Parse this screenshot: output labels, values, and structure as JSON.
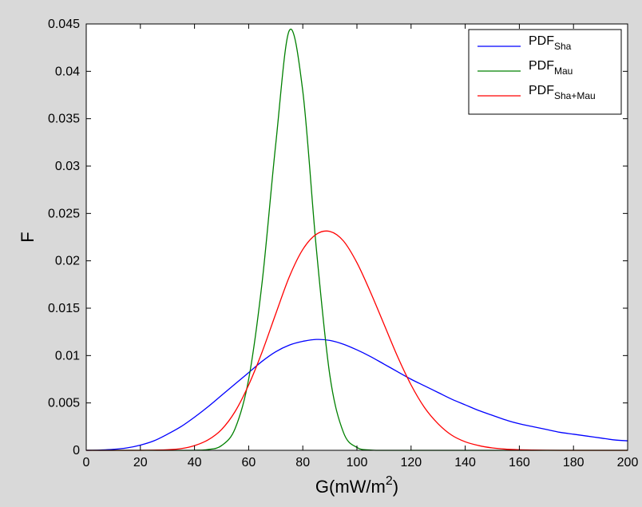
{
  "chart_data": {
    "type": "line",
    "xlabel": "G(mW/m",
    "xlabel_sup": "2",
    "xlabel_tail": ")",
    "ylabel": "F",
    "xlim": [
      0,
      200
    ],
    "ylim": [
      0,
      0.045
    ],
    "xticks": [
      "0",
      "20",
      "40",
      "60",
      "80",
      "100",
      "120",
      "140",
      "160",
      "180",
      "200"
    ],
    "yticks": [
      "0",
      "0.005",
      "0.01",
      "0.015",
      "0.02",
      "0.025",
      "0.03",
      "0.035",
      "0.04",
      "0.045"
    ],
    "grid": false,
    "legend_position": "top-right",
    "x": [
      0,
      5,
      10,
      15,
      20,
      25,
      30,
      35,
      40,
      45,
      50,
      55,
      60,
      65,
      70,
      75,
      80,
      85,
      90,
      95,
      100,
      105,
      110,
      115,
      120,
      125,
      130,
      135,
      140,
      145,
      150,
      155,
      160,
      165,
      170,
      175,
      180,
      185,
      190,
      195,
      200
    ],
    "series": [
      {
        "name": "PDF",
        "name_sub": "Sha",
        "color": "#0000ff",
        "values": [
          0,
          3e-05,
          0.0001,
          0.00025,
          0.00055,
          0.001,
          0.0017,
          0.0025,
          0.0035,
          0.0046,
          0.0058,
          0.007,
          0.0082,
          0.0094,
          0.0104,
          0.0111,
          0.0115,
          0.0117,
          0.0116,
          0.0112,
          0.0106,
          0.0099,
          0.0091,
          0.0083,
          0.0075,
          0.0068,
          0.0061,
          0.0054,
          0.0048,
          0.0042,
          0.0037,
          0.0032,
          0.0028,
          0.0025,
          0.0022,
          0.0019,
          0.0017,
          0.0015,
          0.0013,
          0.0011,
          0.001
        ]
      },
      {
        "name": "PDF",
        "name_sub": "Mau",
        "color": "#008000",
        "values": [
          0,
          0,
          0,
          0,
          0,
          0,
          0,
          0,
          1e-05,
          8e-05,
          0.0005,
          0.0023,
          0.0075,
          0.0178,
          0.0323,
          0.0443,
          0.0379,
          0.0213,
          0.0079,
          0.0019,
          0.0003,
          3e-05,
          0,
          0,
          0,
          0,
          0,
          0,
          0,
          0,
          0,
          0,
          0,
          0,
          0,
          0,
          0,
          0,
          0,
          0,
          0
        ]
      },
      {
        "name": "PDF",
        "name_sub": "Sha+Mau",
        "color": "#ff0000",
        "values": [
          0,
          0,
          0,
          0,
          0,
          2e-05,
          6e-05,
          0.00018,
          0.0005,
          0.0011,
          0.0022,
          0.0041,
          0.0069,
          0.0104,
          0.0144,
          0.0183,
          0.0212,
          0.0228,
          0.0231,
          0.0221,
          0.0198,
          0.0167,
          0.0133,
          0.0099,
          0.0069,
          0.0045,
          0.0028,
          0.0016,
          0.0009,
          0.0005,
          0.00025,
          0.00012,
          6e-05,
          3e-05,
          1e-05,
          0,
          0,
          0,
          0,
          0,
          0
        ]
      }
    ]
  }
}
